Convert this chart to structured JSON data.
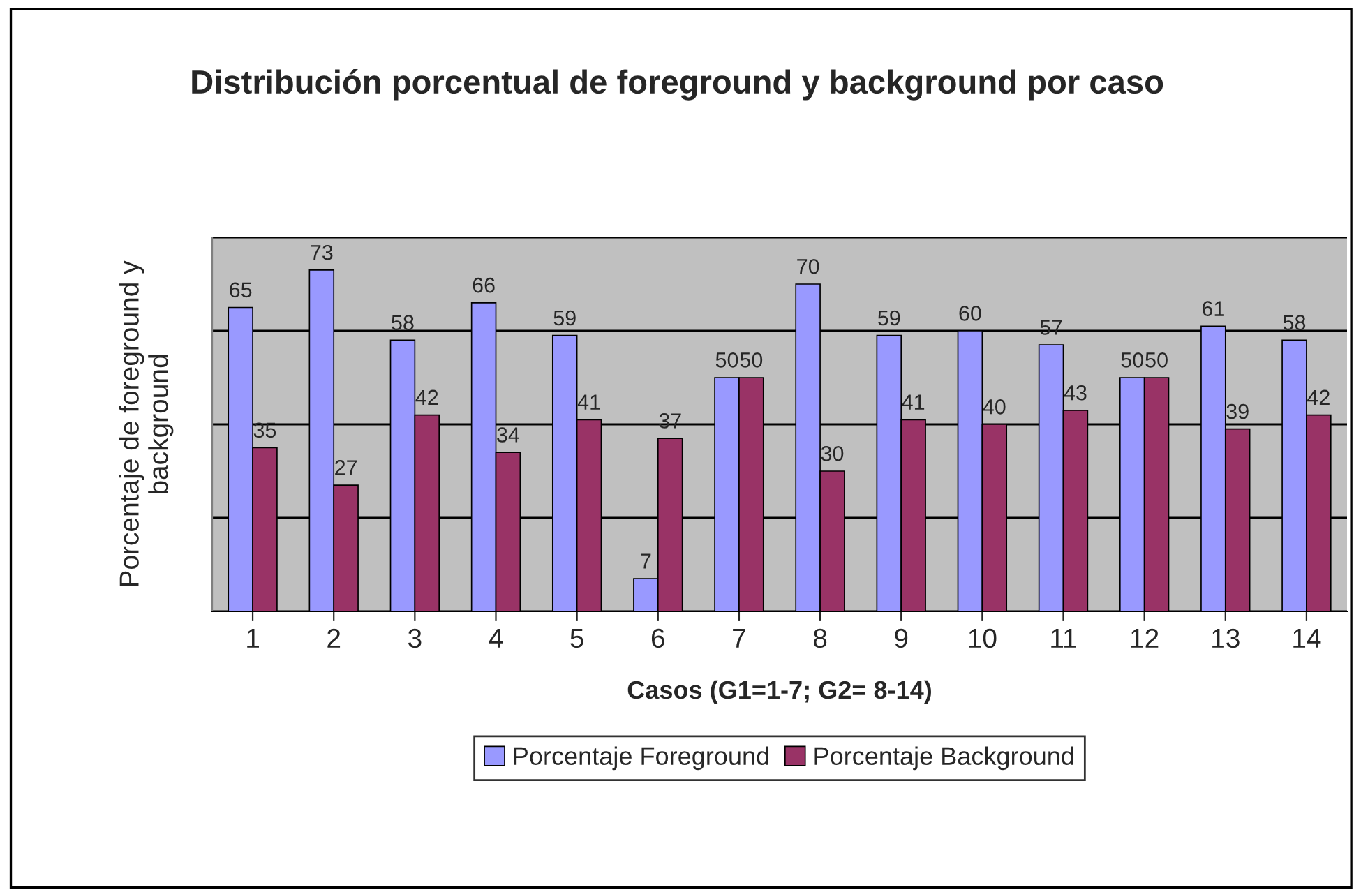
{
  "chart_data": {
    "type": "bar",
    "title": "Distribución porcentual de foreground y background por caso",
    "xlabel": "Casos (G1=1-7; G2= 8-14)",
    "ylabel": "Porcentaje de foreground y background",
    "categories": [
      "1",
      "2",
      "3",
      "4",
      "5",
      "6",
      "7",
      "8",
      "9",
      "10",
      "11",
      "12",
      "13",
      "14"
    ],
    "series": [
      {
        "name": "Porcentaje Foreground",
        "color": "#9999ff",
        "values": [
          65,
          73,
          58,
          66,
          59,
          7,
          50,
          70,
          59,
          60,
          57,
          50,
          61,
          58
        ]
      },
      {
        "name": "Porcentaje Background",
        "color": "#993366",
        "values": [
          35,
          27,
          42,
          34,
          41,
          37,
          50,
          30,
          41,
          40,
          43,
          50,
          39,
          42
        ]
      }
    ],
    "ylim": [
      0,
      80
    ],
    "yticks": [
      {
        "value": 0,
        "label": null
      },
      {
        "value": 20,
        "label": null
      },
      {
        "value": 40,
        "label": null
      },
      {
        "value": 60,
        "label": null
      },
      {
        "value": 80,
        "label": null
      }
    ],
    "tick_labels": "x",
    "grid": "y",
    "legend": "bottom",
    "data_labels": true
  }
}
